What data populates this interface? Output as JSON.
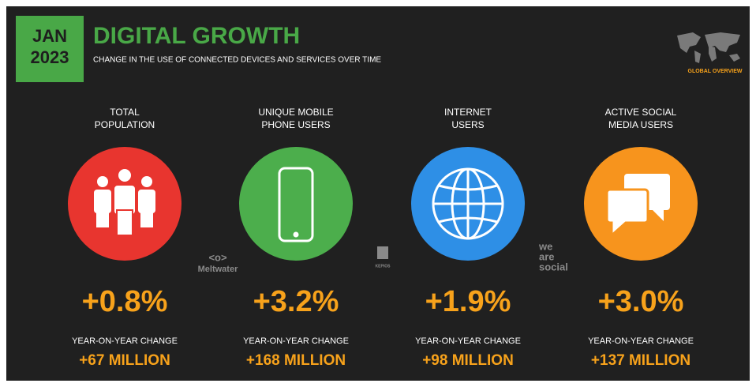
{
  "header": {
    "badge": [
      "JAN",
      "2023"
    ],
    "title": "DIGITAL GROWTH",
    "subtitle": "CHANGE IN THE USE OF CONNECTED DEVICES AND SERVICES OVER TIME",
    "corner_label": "GLOBAL OVERVIEW"
  },
  "cards": [
    {
      "label": [
        "TOTAL",
        "POPULATION"
      ],
      "change": "+0.8%",
      "change_label": "YEAR-ON-YEAR CHANGE",
      "absolute": "+67 MILLION"
    },
    {
      "label": [
        "UNIQUE MOBILE",
        "PHONE USERS"
      ],
      "change": "+3.2%",
      "change_label": "YEAR-ON-YEAR CHANGE",
      "absolute": "+168 MILLION"
    },
    {
      "label": [
        "INTERNET",
        "USERS"
      ],
      "change": "+1.9%",
      "change_label": "YEAR-ON-YEAR CHANGE",
      "absolute": "+98 MILLION"
    },
    {
      "label": [
        "ACTIVE SOCIAL",
        "MEDIA USERS"
      ],
      "change": "+3.0%",
      "change_label": "YEAR-ON-YEAR CHANGE",
      "absolute": "+137 MILLION"
    }
  ],
  "logos": {
    "meltwater": "Meltwater",
    "kepios": "KEPIOS",
    "we_are_social": [
      "we",
      "are",
      "social"
    ]
  }
}
